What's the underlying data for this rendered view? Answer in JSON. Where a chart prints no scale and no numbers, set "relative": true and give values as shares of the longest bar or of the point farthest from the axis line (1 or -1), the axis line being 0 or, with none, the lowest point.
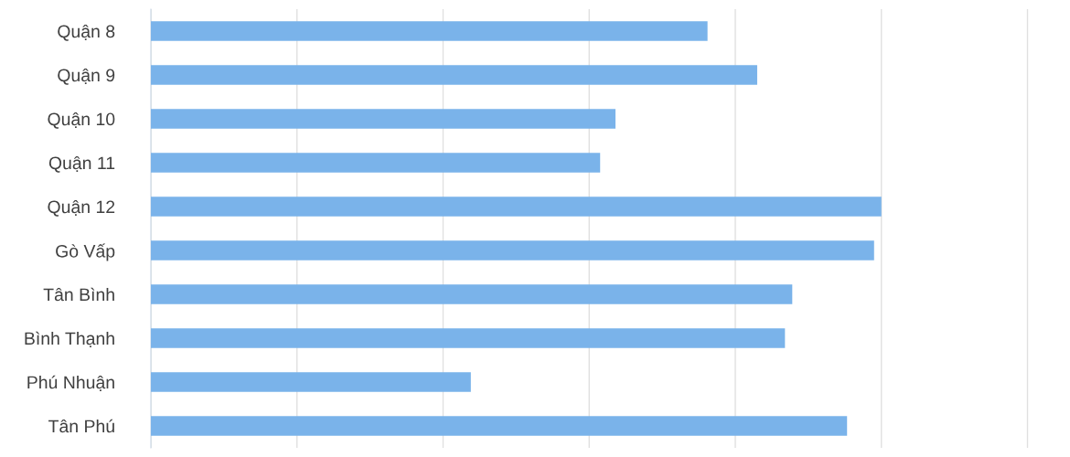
{
  "chart_data": {
    "type": "bar",
    "orientation": "horizontal",
    "relative": true,
    "grid": "x",
    "color": "#7ab3ea",
    "categories": [
      "Quận 8",
      "Quận 9",
      "Quận 10",
      "Quận 11",
      "Quận 12",
      "Gò Vấp",
      "Tân Bình",
      "Bình Thạnh",
      "Phú Nhuận",
      "Tân Phú"
    ],
    "values": [
      0.762,
      0.83,
      0.636,
      0.615,
      1,
      0.99,
      0.878,
      0.868,
      0.438,
      0.953
    ]
  }
}
